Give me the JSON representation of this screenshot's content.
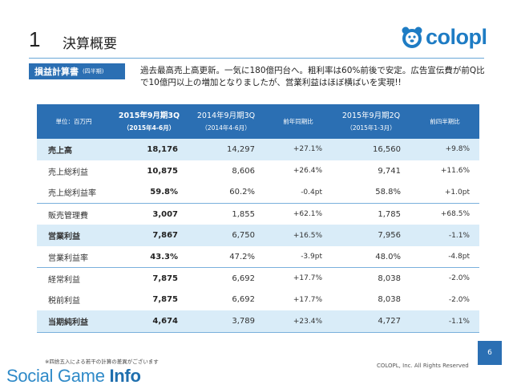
{
  "header": {
    "slide_number": "1",
    "title": "決算概要",
    "logo_text": "colopl",
    "logo_color": "#1e7cc4"
  },
  "section": {
    "tag_label": "損益計算書",
    "tag_sub": "(四半期)",
    "lead_line1": "過去最高売上高更新。一気に180億円台へ。粗利率は60%前後で安定。広告宣伝費が前Q比",
    "lead_line2": "で10億円以上の増加となりましたが、営業利益はほぼ横ばいを実現!!"
  },
  "table": {
    "unit": "単位：百万円",
    "columns": [
      {
        "l1": "2015年9月期3Q",
        "l2": "（2015年4-6月）"
      },
      {
        "l1": "2014年9月期3Q",
        "l2": "（2014年4-6月）"
      },
      {
        "l1": "前年同期比",
        "l2": ""
      },
      {
        "l1": "2015年9月期2Q",
        "l2": "（2015年1-3月）"
      },
      {
        "l1": "前四半期比",
        "l2": ""
      }
    ],
    "rows": [
      {
        "label": "売上高",
        "v1": "18,176",
        "v2": "14,297",
        "v3": "+27.1%",
        "v4": "16,560",
        "v5": "+9.8%"
      },
      {
        "label": "売上総利益",
        "v1": "10,875",
        "v2": "8,606",
        "v3": "+26.4%",
        "v4": "9,741",
        "v5": "+11.6%"
      },
      {
        "label": "売上総利益率",
        "v1": "59.8%",
        "v2": "60.2%",
        "v3": "-0.4pt",
        "v4": "58.8%",
        "v5": "+1.0pt"
      },
      {
        "label": "販売管理費",
        "v1": "3,007",
        "v2": "1,855",
        "v3": "+62.1%",
        "v4": "1,785",
        "v5": "+68.5%"
      },
      {
        "label": "営業利益",
        "v1": "7,867",
        "v2": "6,750",
        "v3": "+16.5%",
        "v4": "7,956",
        "v5": "-1.1%"
      },
      {
        "label": "営業利益率",
        "v1": "43.3%",
        "v2": "47.2%",
        "v3": "-3.9pt",
        "v4": "48.0%",
        "v5": "-4.8pt"
      },
      {
        "label": "経常利益",
        "v1": "7,875",
        "v2": "6,692",
        "v3": "+17.7%",
        "v4": "8,038",
        "v5": "-2.0%"
      },
      {
        "label": "税前利益",
        "v1": "7,875",
        "v2": "6,692",
        "v3": "+17.7%",
        "v4": "8,038",
        "v5": "-2.0%"
      },
      {
        "label": "当期純利益",
        "v1": "4,674",
        "v2": "3,789",
        "v3": "+23.4%",
        "v4": "4,727",
        "v5": "-1.1%"
      }
    ]
  },
  "footer": {
    "note": "※四捨五入による若干の計算の差異がございます",
    "page_number": "6",
    "copyright": "COLOPL, Inc. All Rights Reserved",
    "watermark_regular": "Social Game ",
    "watermark_bold": "Info"
  }
}
